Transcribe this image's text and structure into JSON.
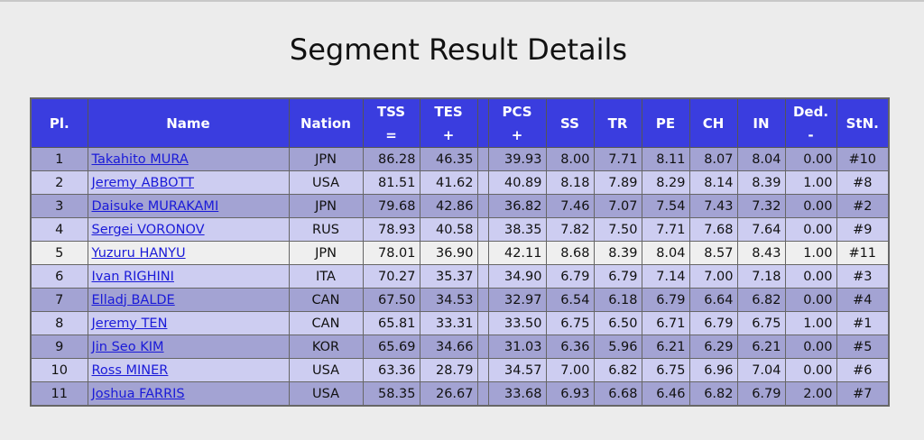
{
  "title": "Segment Result Details",
  "headers": {
    "pl": "Pl.",
    "name": "Name",
    "nation": "Nation",
    "tss": "TSS",
    "tss_sub": "=",
    "tes": "TES",
    "tes_sub": "+",
    "pcs": "PCS",
    "pcs_sub": "+",
    "ss": "SS",
    "tr": "TR",
    "pe": "PE",
    "ch": "CH",
    "in": "IN",
    "ded": "Ded.",
    "ded_sub": "-",
    "stn": "StN."
  },
  "rows": [
    {
      "pl": "1",
      "name": "Takahito MURA",
      "nation": "JPN",
      "tss": "86.28",
      "tes": "46.35",
      "pcs": "39.93",
      "ss": "8.00",
      "tr": "7.71",
      "pe": "8.11",
      "ch": "8.07",
      "in": "8.04",
      "ded": "0.00",
      "stn": "#10"
    },
    {
      "pl": "2",
      "name": "Jeremy ABBOTT",
      "nation": "USA",
      "tss": "81.51",
      "tes": "41.62",
      "pcs": "40.89",
      "ss": "8.18",
      "tr": "7.89",
      "pe": "8.29",
      "ch": "8.14",
      "in": "8.39",
      "ded": "1.00",
      "stn": "#8"
    },
    {
      "pl": "3",
      "name": "Daisuke MURAKAMI",
      "nation": "JPN",
      "tss": "79.68",
      "tes": "42.86",
      "pcs": "36.82",
      "ss": "7.46",
      "tr": "7.07",
      "pe": "7.54",
      "ch": "7.43",
      "in": "7.32",
      "ded": "0.00",
      "stn": "#2"
    },
    {
      "pl": "4",
      "name": "Sergei VORONOV",
      "nation": "RUS",
      "tss": "78.93",
      "tes": "40.58",
      "pcs": "38.35",
      "ss": "7.82",
      "tr": "7.50",
      "pe": "7.71",
      "ch": "7.68",
      "in": "7.64",
      "ded": "0.00",
      "stn": "#9"
    },
    {
      "pl": "5",
      "name": "Yuzuru HANYU",
      "nation": "JPN",
      "tss": "78.01",
      "tes": "36.90",
      "pcs": "42.11",
      "ss": "8.68",
      "tr": "8.39",
      "pe": "8.04",
      "ch": "8.57",
      "in": "8.43",
      "ded": "1.00",
      "stn": "#11"
    },
    {
      "pl": "6",
      "name": "Ivan RIGHINI",
      "nation": "ITA",
      "tss": "70.27",
      "tes": "35.37",
      "pcs": "34.90",
      "ss": "6.79",
      "tr": "6.79",
      "pe": "7.14",
      "ch": "7.00",
      "in": "7.18",
      "ded": "0.00",
      "stn": "#3"
    },
    {
      "pl": "7",
      "name": "Elladj BALDE",
      "nation": "CAN",
      "tss": "67.50",
      "tes": "34.53",
      "pcs": "32.97",
      "ss": "6.54",
      "tr": "6.18",
      "pe": "6.79",
      "ch": "6.64",
      "in": "6.82",
      "ded": "0.00",
      "stn": "#4"
    },
    {
      "pl": "8",
      "name": "Jeremy TEN",
      "nation": "CAN",
      "tss": "65.81",
      "tes": "33.31",
      "pcs": "33.50",
      "ss": "6.75",
      "tr": "6.50",
      "pe": "6.71",
      "ch": "6.79",
      "in": "6.75",
      "ded": "1.00",
      "stn": "#1"
    },
    {
      "pl": "9",
      "name": "Jin Seo KIM",
      "nation": "KOR",
      "tss": "65.69",
      "tes": "34.66",
      "pcs": "31.03",
      "ss": "6.36",
      "tr": "5.96",
      "pe": "6.21",
      "ch": "6.29",
      "in": "6.21",
      "ded": "0.00",
      "stn": "#5"
    },
    {
      "pl": "10",
      "name": "Ross MINER",
      "nation": "USA",
      "tss": "63.36",
      "tes": "28.79",
      "pcs": "34.57",
      "ss": "7.00",
      "tr": "6.82",
      "pe": "6.75",
      "ch": "6.96",
      "in": "7.04",
      "ded": "0.00",
      "stn": "#6"
    },
    {
      "pl": "11",
      "name": "Joshua FARRIS",
      "nation": "USA",
      "tss": "58.35",
      "tes": "26.67",
      "pcs": "33.68",
      "ss": "6.93",
      "tr": "6.68",
      "pe": "6.46",
      "ch": "6.82",
      "in": "6.79",
      "ded": "2.00",
      "stn": "#7"
    }
  ],
  "colors": {
    "header_bg": "#3a3ddf",
    "row_odd": "#a3a3d3",
    "row_even": "#cdcdf1",
    "row_highlight": "#efefef",
    "link": "#1a1ad8"
  }
}
